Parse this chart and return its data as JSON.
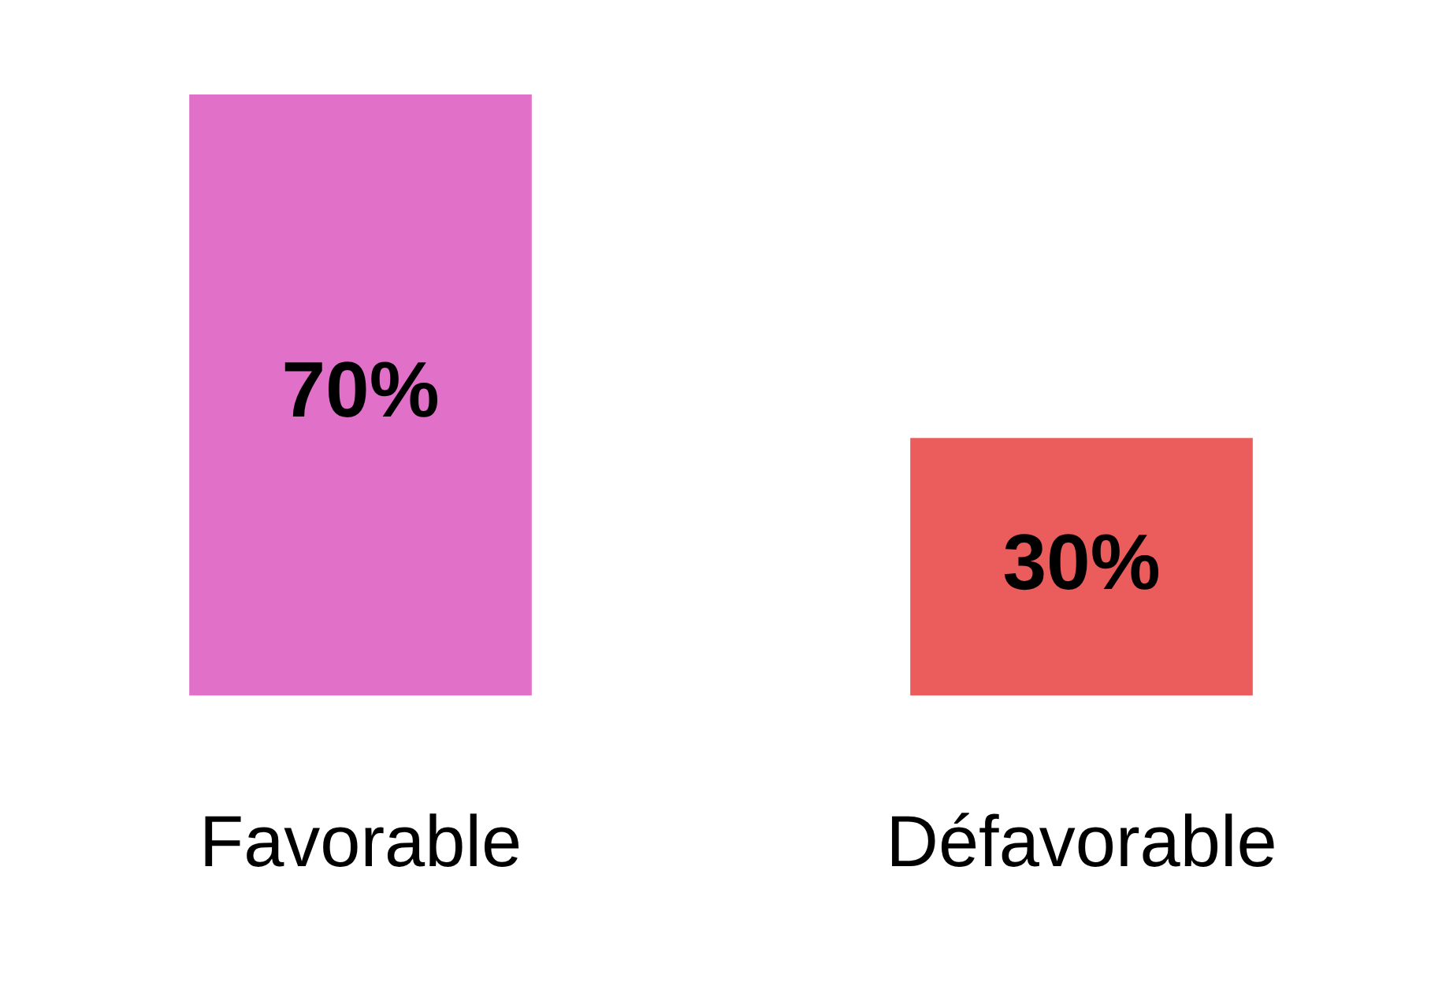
{
  "chart_data": {
    "type": "bar",
    "categories": [
      "Favorable",
      "Défavorable"
    ],
    "values": [
      70,
      30
    ],
    "colors": [
      "#e070c8",
      "#eb5c5c"
    ],
    "value_labels": [
      "70%",
      "30%"
    ]
  }
}
